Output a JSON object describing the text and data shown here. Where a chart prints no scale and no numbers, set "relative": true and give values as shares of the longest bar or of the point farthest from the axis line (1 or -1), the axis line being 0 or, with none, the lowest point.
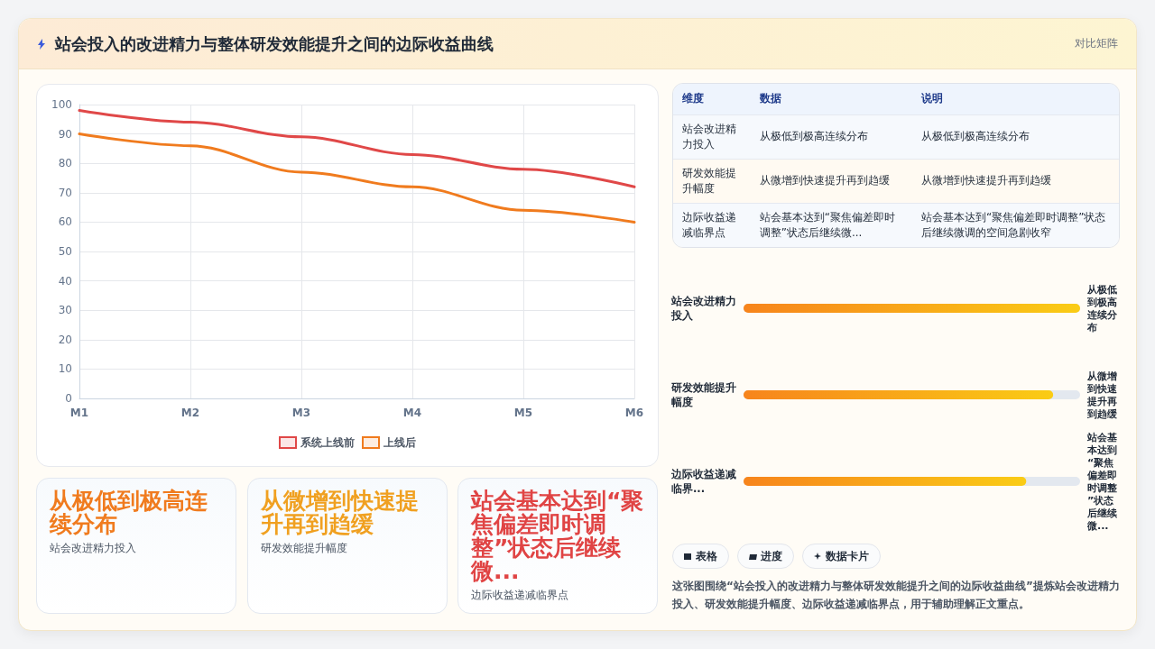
{
  "chart_data": [
    {
      "type": "other",
      "title": "站会投入的改进精力与整体研发效能提升之间的边际收益曲线",
      "subtitle": "对比矩阵"
    },
    {
      "type": "line",
      "categories": [
        "M1",
        "M2",
        "M3",
        "M4",
        "M5",
        "M6"
      ],
      "series": [
        {
          "name": "系统上线前",
          "color": "#e04848",
          "values": [
            98,
            94,
            89,
            83,
            78,
            72
          ]
        },
        {
          "name": "上线后",
          "color": "#f07b1e",
          "values": [
            90,
            86,
            77,
            72,
            64,
            60
          ]
        }
      ],
      "ylim": [
        0,
        100
      ],
      "yticks": [
        0,
        10,
        20,
        30,
        40,
        50,
        60,
        70,
        80,
        90,
        100
      ],
      "grid": true,
      "legend": "bottom",
      "marker": "none",
      "line_style": "solid"
    },
    {
      "type": "other",
      "annotations": [
        "维度",
        "数据",
        "说明",
        "站会改进精力投入",
        "从极低到极高连续分布",
        "从极低到极高连续分布",
        "研发效能提升幅度",
        "从微增到快速提升再到趋缓",
        "从微增到快速提升再到趋缓",
        "边际收益递减临界点",
        "站会基本达到“聚焦偏差即时调整”状态后继续微...",
        "站会基本达到“聚焦偏差即时调整”状态后继续微调的空间急剧收窄"
      ]
    },
    {
      "type": "bar",
      "orientation": "horizontal",
      "relative": true,
      "categories": [
        "站会改进精力投入",
        "研发效能提升幅度",
        "边际收益递减临界..."
      ],
      "y2_categories": [
        "从极低到极高连续分布",
        "从微增到快速提升再到趋缓",
        "站会基本达到“聚焦偏差即时调整”状态后继续微..."
      ],
      "values": [
        1,
        0.92,
        0.84
      ],
      "color": "#f7841c"
    },
    {
      "type": "other",
      "annotations": [
        "从极低到极高连续分布",
        "站会改进精力投入",
        "从微增到快速提升再到趋缓",
        "研发效能提升幅度",
        "站会基本达到“聚焦偏差即时调整”状态后继续微...",
        "边际收益递减临界点"
      ],
      "colors": [
        "#f07b1e",
        "#f0a020",
        "#e04444"
      ]
    },
    {
      "type": "other",
      "annotations": [
        "表格",
        "进度",
        "数据卡片",
        "这张图围绕“站会投入的改进精力与整体研发效能提升之间的边际收益曲线”提炼站会改进精力投入、研发效能提升幅度、边际收益递减临界点，用于辅助理解正文重点。"
      ]
    }
  ]
}
